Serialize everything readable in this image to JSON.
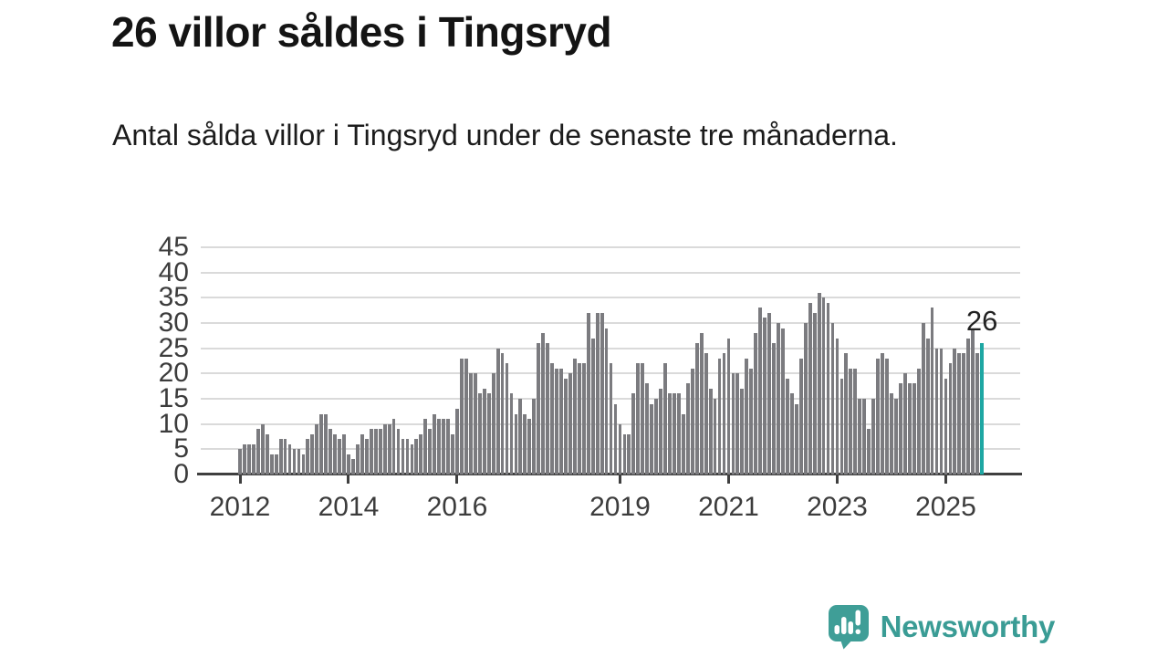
{
  "header": {
    "title": "26 villor såldes i Tingsryd",
    "subtitle": "Antal sålda villor i Tingsryd under de senaste tre månaderna."
  },
  "chart_data": {
    "type": "bar",
    "title": "26 villor såldes i Tingsryd",
    "xlabel": "",
    "ylabel": "",
    "ylim": [
      0,
      45
    ],
    "yticks": [
      0,
      5,
      10,
      15,
      20,
      25,
      30,
      35,
      40,
      45
    ],
    "xticks": [
      2012,
      2014,
      2016,
      2019,
      2021,
      2023,
      2025
    ],
    "grid": true,
    "x_start_year": 2012,
    "x_start_month": 1,
    "frequency": "monthly",
    "bar_color": "#7b7b7f",
    "highlight_color": "#1ea7a3",
    "highlight_last_bar": true,
    "last_value_label": "26",
    "values": [
      5,
      6,
      6,
      6,
      9,
      10,
      8,
      4,
      4,
      7,
      7,
      6,
      5,
      5,
      4,
      7,
      8,
      10,
      12,
      12,
      9,
      8,
      7,
      8,
      4,
      3,
      6,
      8,
      7,
      9,
      9,
      9,
      10,
      10,
      11,
      9,
      7,
      7,
      6,
      7,
      8,
      11,
      9,
      12,
      11,
      11,
      11,
      8,
      13,
      23,
      23,
      20,
      20,
      16,
      17,
      16,
      20,
      25,
      24,
      22,
      16,
      12,
      15,
      12,
      11,
      15,
      26,
      28,
      26,
      22,
      21,
      21,
      19,
      20,
      23,
      22,
      22,
      32,
      27,
      32,
      32,
      29,
      22,
      14,
      10,
      8,
      8,
      16,
      22,
      22,
      18,
      14,
      15,
      17,
      22,
      16,
      16,
      16,
      12,
      18,
      21,
      26,
      28,
      24,
      17,
      15,
      23,
      24,
      27,
      20,
      20,
      17,
      23,
      21,
      28,
      33,
      31,
      32,
      26,
      30,
      29,
      19,
      16,
      14,
      23,
      30,
      34,
      32,
      36,
      35,
      34,
      30,
      27,
      19,
      24,
      21,
      21,
      15,
      15,
      9,
      15,
      23,
      24,
      23,
      16,
      15,
      18,
      20,
      18,
      18,
      21,
      30,
      27,
      33,
      25,
      25,
      19,
      22,
      25,
      24,
      24,
      27,
      29,
      24,
      26
    ]
  },
  "branding": {
    "logo_text": "Newsworthy",
    "logo_color": "#3a9c95"
  }
}
